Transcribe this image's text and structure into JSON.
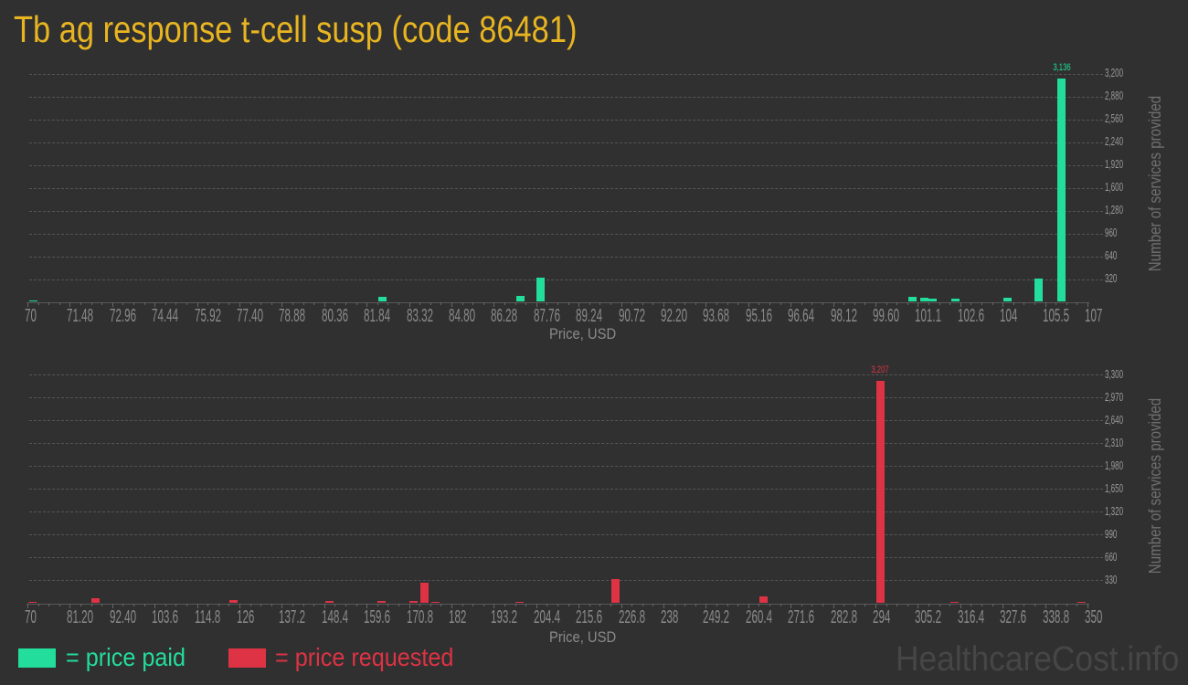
{
  "title": "Tb ag response t-cell susp (code 86481)",
  "colors": {
    "background": "#303030",
    "title": "#e8b521",
    "paid": "#22dd9b",
    "requested": "#dd3344",
    "grid": "#555555",
    "axis_text": "#8a8a8a",
    "watermark": "#464646"
  },
  "legend": {
    "paid_label": "= price paid",
    "requested_label": "= price requested"
  },
  "watermark": "HealthcareCost.info",
  "chart_data": [
    {
      "type": "bar",
      "series_name": "price paid",
      "title": "",
      "xlabel": "Price, USD",
      "ylabel": "Number of services provided",
      "xlim": [
        70,
        107
      ],
      "ylim": [
        0,
        3200
      ],
      "grid": true,
      "color": "#22dd9b",
      "x_tick_labels": [
        "70",
        "71.48",
        "72.96",
        "74.44",
        "75.92",
        "77.40",
        "78.88",
        "80.36",
        "81.84",
        "83.32",
        "84.80",
        "86.28",
        "87.76",
        "89.24",
        "90.72",
        "92.20",
        "93.68",
        "95.16",
        "96.64",
        "98.12",
        "99.60",
        "101.1",
        "102.6",
        "104",
        "105.5",
        "107"
      ],
      "y_ticks": [
        320,
        640,
        960,
        1280,
        1600,
        1920,
        2240,
        2560,
        2880,
        3200
      ],
      "y_tick_labels": [
        "320",
        "640",
        "960",
        "1,280",
        "1,600",
        "1,920",
        "2,240",
        "2,560",
        "2,880",
        "3,200"
      ],
      "bars": [
        {
          "x": 70.2,
          "y": 25
        },
        {
          "x": 82.4,
          "y": 75
        },
        {
          "x": 87.2,
          "y": 77
        },
        {
          "x": 87.9,
          "y": 345
        },
        {
          "x": 100.9,
          "y": 68
        },
        {
          "x": 101.3,
          "y": 55
        },
        {
          "x": 101.6,
          "y": 42
        },
        {
          "x": 102.4,
          "y": 42
        },
        {
          "x": 104.2,
          "y": 60
        },
        {
          "x": 105.3,
          "y": 329
        },
        {
          "x": 106.1,
          "y": 3136,
          "label": "3,136"
        }
      ]
    },
    {
      "type": "bar",
      "series_name": "price requested",
      "title": "",
      "xlabel": "Price, USD",
      "ylabel": "Number of services provided",
      "xlim": [
        70,
        350
      ],
      "ylim": [
        0,
        3300
      ],
      "grid": true,
      "color": "#dd3344",
      "x_tick_labels": [
        "70",
        "81.20",
        "92.40",
        "103.6",
        "114.8",
        "126",
        "137.2",
        "148.4",
        "159.6",
        "170.8",
        "182",
        "193.2",
        "204.4",
        "215.6",
        "226.8",
        "238",
        "249.2",
        "260.4",
        "271.6",
        "282.8",
        "294",
        "305.2",
        "316.4",
        "327.6",
        "338.8",
        "350"
      ],
      "y_ticks": [
        330,
        660,
        990,
        1320,
        1650,
        1980,
        2310,
        2640,
        2970,
        3300
      ],
      "y_tick_labels": [
        "330",
        "660",
        "990",
        "1,320",
        "1,650",
        "1,980",
        "2,310",
        "2,640",
        "2,970",
        "3,300"
      ],
      "bars": [
        {
          "x": 71.3,
          "y": 25
        },
        {
          "x": 88.1,
          "y": 79
        },
        {
          "x": 124.4,
          "y": 48
        },
        {
          "x": 149.7,
          "y": 35
        },
        {
          "x": 163.6,
          "y": 35
        },
        {
          "x": 172.1,
          "y": 35
        },
        {
          "x": 174.9,
          "y": 299
        },
        {
          "x": 177.7,
          "y": 22
        },
        {
          "x": 200.1,
          "y": 22
        },
        {
          "x": 225.3,
          "y": 343
        },
        {
          "x": 264.4,
          "y": 101
        },
        {
          "x": 295.3,
          "y": 3207,
          "label": "3,207"
        },
        {
          "x": 314.9,
          "y": 22
        },
        {
          "x": 348.4,
          "y": 22
        }
      ]
    }
  ]
}
